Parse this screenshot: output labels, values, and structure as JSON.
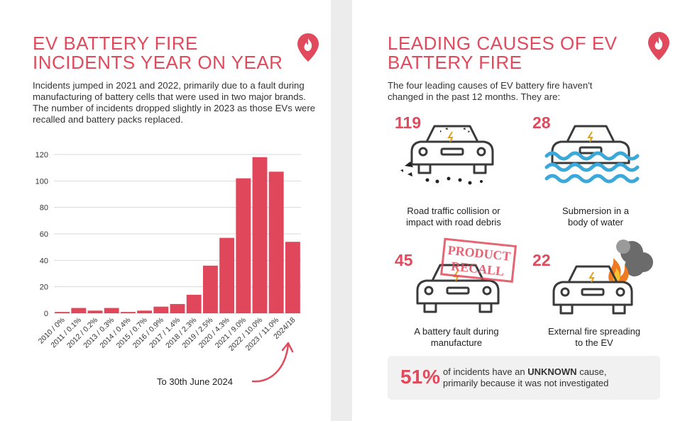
{
  "left": {
    "title_line1": "EV BATTERY FIRE",
    "title_line2": "INCIDENTS YEAR ON YEAR",
    "intro": "Incidents jumped in 2021 and 2022, primarily due to a fault during manufacturing of battery cells that were used in two major brands. The number of incidents dropped slightly in 2023 as those EVs were recalled and battery packs replaced.",
    "note": "To 30th June 2024",
    "pin_icon": "fire-location-pin-icon"
  },
  "right": {
    "title_line1": "LEADING CAUSES OF EV",
    "title_line2": "BATTERY FIRE",
    "intro_line1": "The four leading causes of EV battery fire haven't",
    "intro_line2": "changed in the past 12 months. They are:",
    "causes": [
      {
        "count": "119",
        "label_line1": "Road traffic collision or",
        "label_line2": "impact with road debris",
        "icon": "car-collision-icon"
      },
      {
        "count": "28",
        "label_line1": "Submersion in a",
        "label_line2": "body of water",
        "icon": "car-submerged-icon"
      },
      {
        "count": "45",
        "label_line1": "A battery fault during",
        "label_line2": "manufacture",
        "icon": "car-recall-icon",
        "stamp_line1": "PRODUCT",
        "stamp_line2": "RECALL"
      },
      {
        "count": "22",
        "label_line1": "External fire spreading",
        "label_line2": "to the EV",
        "icon": "car-fire-icon"
      }
    ],
    "unknown": {
      "pct": "51%",
      "text_before": "of incidents have an ",
      "text_bold": "UNKNOWN",
      "text_after": " cause,",
      "text_line2": "primarily because it was not investigated"
    }
  },
  "colors": {
    "accent": "#e04a5c",
    "bar": "#e0475b",
    "grid": "#d9d9d9"
  },
  "chart_data": {
    "type": "bar",
    "categories": [
      "2010 / 0%",
      "2011 / 0.1%",
      "2012 / 0.2%",
      "2013 / 0.3%",
      "2014 / 0.4%",
      "2015 / 0.7%",
      "2016 / 0.9%",
      "2017 / 1.4%",
      "2018 / 2.3%",
      "2019 / 2.5%",
      "2020 / 4.3%",
      "2021 / 9.0%",
      "2022 / 10.0%",
      "2023 / 11.0%",
      "2024/18"
    ],
    "values": [
      1,
      4,
      2,
      4,
      1,
      2,
      5,
      7,
      14,
      36,
      57,
      102,
      118,
      107,
      54
    ],
    "yticks": [
      0,
      20,
      40,
      60,
      80,
      100,
      120
    ],
    "ylim": [
      0,
      120
    ],
    "grid": true
  }
}
